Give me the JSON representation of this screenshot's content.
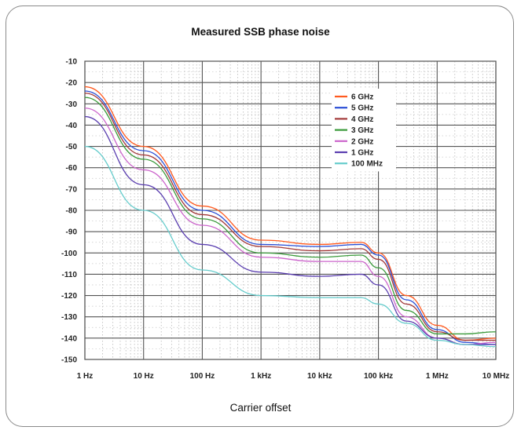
{
  "chart_data": {
    "type": "line",
    "title": "Measured SSB phase noise",
    "xlabel": "Carrier offset",
    "ylabel": "",
    "x_scale": "log",
    "x_unit": "Hz",
    "xlim": [
      1,
      10000000
    ],
    "ylim": [
      -150,
      -10
    ],
    "x_ticks": [
      {
        "value": 1,
        "label": "1 Hz"
      },
      {
        "value": 10,
        "label": "10 Hz"
      },
      {
        "value": 100,
        "label": "100 Hz"
      },
      {
        "value": 1000,
        "label": "1 kHz"
      },
      {
        "value": 10000,
        "label": "10 kHz"
      },
      {
        "value": 100000,
        "label": "100 kHz"
      },
      {
        "value": 1000000,
        "label": "1 MHz"
      },
      {
        "value": 10000000,
        "label": "10 MHz"
      }
    ],
    "y_ticks": [
      {
        "value": -10,
        "label": "-10"
      },
      {
        "value": -20,
        "label": "-20"
      },
      {
        "value": -30,
        "label": "-30"
      },
      {
        "value": -40,
        "label": "-40"
      },
      {
        "value": -50,
        "label": "-50"
      },
      {
        "value": -60,
        "label": "-60"
      },
      {
        "value": -70,
        "label": "-70"
      },
      {
        "value": -80,
        "label": "-80"
      },
      {
        "value": -90,
        "label": "-90"
      },
      {
        "value": -100,
        "label": "-100"
      },
      {
        "value": -110,
        "label": "-110"
      },
      {
        "value": -120,
        "label": "-120"
      },
      {
        "value": -130,
        "label": "-130"
      },
      {
        "value": -140,
        "label": "-140"
      },
      {
        "value": -150,
        "label": "-150"
      }
    ],
    "grid": true,
    "legend": "top-right",
    "series": [
      {
        "name": "6 GHz",
        "color": "#ff5a1f",
        "x": [
          1,
          10,
          100,
          1000,
          10000,
          50000,
          100000,
          300000,
          1000000,
          3000000,
          10000000
        ],
        "y": [
          -22,
          -50,
          -78,
          -94,
          -96,
          -95,
          -100,
          -120,
          -134,
          -141,
          -140
        ]
      },
      {
        "name": "5 GHz",
        "color": "#2b4fd6",
        "x": [
          1,
          10,
          100,
          1000,
          10000,
          50000,
          100000,
          300000,
          1000000,
          3000000,
          10000000
        ],
        "y": [
          -24,
          -52,
          -80,
          -96,
          -97,
          -96,
          -101,
          -122,
          -136,
          -142,
          -143
        ]
      },
      {
        "name": "4 GHz",
        "color": "#a33a3a",
        "x": [
          1,
          10,
          100,
          1000,
          10000,
          50000,
          100000,
          300000,
          1000000,
          3000000,
          10000000
        ],
        "y": [
          -25,
          -54,
          -82,
          -97,
          -99,
          -98,
          -103,
          -124,
          -137,
          -141,
          -141
        ]
      },
      {
        "name": "3 GHz",
        "color": "#3a9a3a",
        "x": [
          1,
          10,
          100,
          1000,
          10000,
          50000,
          100000,
          300000,
          1000000,
          3000000,
          10000000
        ],
        "y": [
          -27,
          -56,
          -84,
          -100,
          -102,
          -101,
          -107,
          -127,
          -138,
          -138,
          -137
        ]
      },
      {
        "name": "2 GHz",
        "color": "#cc66cc",
        "x": [
          1,
          10,
          100,
          1000,
          10000,
          50000,
          100000,
          300000,
          1000000,
          3000000,
          10000000
        ],
        "y": [
          -32,
          -61,
          -87,
          -102,
          -104,
          -104,
          -111,
          -130,
          -140,
          -143,
          -142
        ]
      },
      {
        "name": "1 GHz",
        "color": "#5b3fb0",
        "x": [
          1,
          10,
          100,
          1000,
          10000,
          50000,
          100000,
          300000,
          1000000,
          3000000,
          10000000
        ],
        "y": [
          -36,
          -68,
          -96,
          -109,
          -111,
          -110,
          -115,
          -132,
          -140,
          -143,
          -143
        ]
      },
      {
        "name": "100 MHz",
        "color": "#66cccc",
        "x": [
          1,
          10,
          100,
          1000,
          10000,
          50000,
          100000,
          300000,
          1000000,
          3000000,
          10000000
        ],
        "y": [
          -50,
          -80,
          -108,
          -120,
          -121,
          -121,
          -124,
          -133,
          -141,
          -143,
          -144
        ]
      }
    ]
  }
}
